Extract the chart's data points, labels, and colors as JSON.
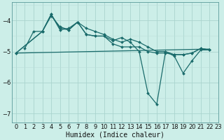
{
  "xlabel": "Humidex (Indice chaleur)",
  "bg_color": "#cceee8",
  "grid_color_major": "#aad4ce",
  "grid_color_minor": "#bbddda",
  "line_color": "#1a6b6b",
  "xlim": [
    -0.5,
    23.0
  ],
  "ylim": [
    -7.3,
    -3.4
  ],
  "yticks": [
    -7,
    -6,
    -5,
    -4
  ],
  "xticks": [
    0,
    1,
    2,
    3,
    4,
    5,
    6,
    7,
    8,
    9,
    10,
    11,
    12,
    13,
    14,
    15,
    16,
    17,
    18,
    19,
    20,
    21,
    22,
    23
  ],
  "series1_x": [
    1,
    2,
    3,
    4,
    5,
    6,
    7,
    8,
    9,
    10,
    11,
    12,
    13,
    14,
    15,
    16,
    17,
    18,
    19,
    20,
    21,
    22
  ],
  "series1_y": [
    -4.9,
    -4.35,
    -4.35,
    -3.85,
    -4.2,
    -4.3,
    -4.05,
    -4.25,
    -4.35,
    -4.45,
    -4.6,
    -4.7,
    -4.6,
    -4.7,
    -4.85,
    -5.0,
    -5.0,
    -5.1,
    -5.1,
    -5.05,
    -4.9,
    -4.95
  ],
  "series2_x": [
    0,
    3,
    4,
    5,
    6,
    7,
    8,
    9,
    10,
    11,
    12,
    13,
    14,
    15,
    16,
    17,
    18,
    19,
    20,
    21,
    22
  ],
  "series2_y": [
    -5.05,
    -4.35,
    -3.8,
    -4.3,
    -4.25,
    -4.05,
    -4.45,
    -4.5,
    -4.5,
    -4.75,
    -4.85,
    -4.85,
    -4.85,
    -5.0,
    -5.05,
    -5.05,
    -5.1,
    -5.1,
    -5.05,
    -4.9,
    -4.95
  ],
  "series3_x": [
    0,
    3,
    4,
    5,
    6,
    7,
    8,
    9,
    10,
    11,
    12,
    13,
    14,
    15,
    16,
    17,
    18,
    19,
    20,
    21,
    22
  ],
  "series3_y": [
    -5.05,
    -4.35,
    -3.8,
    -4.25,
    -4.3,
    -4.05,
    -4.45,
    -4.5,
    -4.5,
    -4.65,
    -4.55,
    -4.7,
    -5.0,
    -6.35,
    -6.7,
    -5.0,
    -5.15,
    -5.7,
    -5.3,
    -4.95,
    -4.95
  ],
  "trend_x": [
    0,
    22
  ],
  "trend_y": [
    -5.05,
    -4.92
  ],
  "marker_size": 2.0,
  "linewidth": 0.9,
  "font_size_label": 7,
  "font_size_tick": 6
}
